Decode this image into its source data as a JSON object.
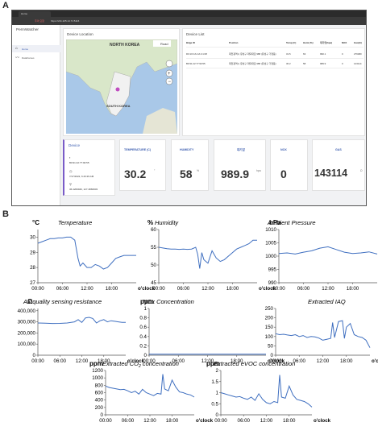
{
  "panel_labels": {
    "a": "A",
    "b": "B"
  },
  "app": {
    "browser_tab": "Home",
    "url_text": "https://211.225.14.71:5116",
    "warning_text": "주의 요함",
    "sidebar_title": "PermWatcher",
    "sidebar_items": [
      {
        "label": "Home",
        "icon": "home-icon"
      },
      {
        "label": "Dataframes",
        "icon": "chart-icon"
      }
    ],
    "device_location_title": "Device Location",
    "map": {
      "label_north_korea": "NORTH KOREA",
      "label_south_korea": "SOUTH KOREA",
      "roads_button": "Road"
    },
    "device_list": {
      "title": "Device List",
      "columns": [
        "Bdge ID",
        "Position",
        "Temp (C)",
        "Humi (%)",
        "대기압(hpa)",
        "NOX",
        "Gas(Ω)"
      ],
      "rows": [
        [
          "D0:10:CA:CA:C1:08",
          "대전광역시 유성구 대덕대로 988 (유성구 가정동)",
          "31.5",
          "63",
          "990.1",
          "0",
          "276480"
        ],
        [
          "B0:91:22:77:90:55",
          "대전광역시 유성구 대덕대로 988 (유성구 가정동)",
          "30.2",
          "58",
          "989.9",
          "0",
          "143114"
        ]
      ]
    },
    "device": {
      "title": "Device",
      "id": "B0:91:22:77:90:55",
      "datetime": "7/17/2022, 6:43:29 AM",
      "coords": "36.4209946, 127.4866903"
    },
    "metrics": [
      {
        "label": "TEMPERATURE (C)",
        "value": "30.2",
        "unit": "°"
      },
      {
        "label": "HUMIDITY",
        "value": "58",
        "unit": "%"
      },
      {
        "label": "대기압",
        "value": "989.9",
        "unit": "hpa"
      },
      {
        "label": "NOX",
        "value": "0",
        "unit": ""
      },
      {
        "label": "GAS",
        "value": "143114",
        "unit": "Ω"
      }
    ]
  },
  "chart_data": [
    {
      "type": "line",
      "unit": "°C",
      "title": "Temperature",
      "xlabel": "o'clock",
      "x_ticks": [
        "00:00",
        "06:00",
        "12:00",
        "18:00"
      ],
      "y_ticks": [
        "27",
        "28",
        "29",
        "30"
      ],
      "ylim": [
        27,
        30.5
      ],
      "x": [
        0,
        1,
        2,
        3,
        4,
        5,
        6,
        7,
        8,
        9,
        9.8,
        10.3,
        11,
        12,
        13,
        14,
        15,
        16,
        17,
        18,
        19,
        20,
        21,
        22,
        23,
        24
      ],
      "values": [
        29.6,
        29.7,
        29.8,
        29.9,
        29.9,
        29.95,
        29.95,
        30.0,
        30.0,
        29.8,
        28.6,
        28.1,
        28.3,
        28.0,
        28.0,
        28.2,
        28.1,
        27.9,
        28.0,
        28.3,
        28.6,
        28.7,
        28.8,
        28.8,
        28.8,
        28.8
      ]
    },
    {
      "type": "line",
      "unit": "%",
      "title": "Humidity",
      "xlabel": "o'clock",
      "x_ticks": [
        "00:00",
        "06:00",
        "12:00",
        "18:00"
      ],
      "y_ticks": [
        "45",
        "50",
        "55",
        "60"
      ],
      "ylim": [
        45,
        60
      ],
      "x": [
        0,
        1,
        2,
        3,
        4,
        5,
        6,
        7,
        8,
        9,
        9.5,
        10,
        10.5,
        11,
        12,
        13,
        14,
        15,
        16,
        17,
        18,
        19,
        20,
        21,
        22,
        23,
        24
      ],
      "values": [
        55.0,
        54.8,
        54.6,
        54.5,
        54.5,
        54.4,
        54.5,
        54.4,
        54.5,
        55.0,
        53.0,
        49.0,
        53.5,
        51.5,
        50.5,
        54.0,
        52.0,
        51.0,
        51.5,
        52.5,
        53.5,
        54.5,
        55.0,
        55.5,
        56.0,
        57.0,
        57.0
      ]
    },
    {
      "type": "line",
      "unit": "hPa",
      "title": "Ambient Pressure",
      "xlabel": "o'clock",
      "x_ticks": [
        "00:00",
        "06:00",
        "12:00",
        "18:00"
      ],
      "y_ticks": [
        "990",
        "995",
        "1000",
        "1005",
        "1010"
      ],
      "ylim": [
        990,
        1010
      ],
      "x": [
        0,
        2,
        4,
        6,
        8,
        10,
        12,
        14,
        16,
        18,
        20,
        22,
        24
      ],
      "values": [
        1001.0,
        1001.2,
        1000.8,
        1001.5,
        1002.0,
        1003.0,
        1003.5,
        1002.5,
        1001.5,
        1001.0,
        1001.2,
        1001.6,
        1000.8
      ]
    },
    {
      "type": "line",
      "unit": "Ω",
      "title": "Air quality sensing resistance",
      "xlabel": "o'clock",
      "x_ticks": [
        "00:00",
        "06:00",
        "12:00",
        "18:00"
      ],
      "y_ticks": [
        "0",
        "100,000",
        "200,000",
        "300,000",
        "400,000"
      ],
      "ylim": [
        0,
        420000
      ],
      "x": [
        0,
        2,
        4,
        6,
        8,
        10,
        11,
        12,
        13,
        14,
        15,
        16,
        17,
        18,
        19,
        20,
        21,
        22,
        23,
        24
      ],
      "values": [
        290000,
        288000,
        285000,
        286000,
        290000,
        300000,
        320000,
        295000,
        335000,
        340000,
        330000,
        290000,
        310000,
        320000,
        300000,
        310000,
        305000,
        300000,
        295000,
        295000
      ]
    },
    {
      "type": "line",
      "unit": "ppm",
      "title": "NOx Concentration",
      "xlabel": "o'clock",
      "x_ticks": [
        "00:00",
        "06:00",
        "12:00",
        "18:00"
      ],
      "y_ticks": [
        "0",
        "0.2",
        "0.4",
        "0.6",
        "0.8",
        "1"
      ],
      "ylim": [
        0,
        1
      ],
      "x": [
        0,
        24
      ],
      "values": [
        0.02,
        0.02
      ]
    },
    {
      "type": "line",
      "unit": "",
      "title": "Extracted IAQ",
      "xlabel": "o'clock",
      "x_ticks": [
        "00:00",
        "06:00",
        "12:00",
        "18:00"
      ],
      "y_ticks": [
        "0",
        "50",
        "100",
        "150",
        "200",
        "250"
      ],
      "ylim": [
        0,
        250
      ],
      "x": [
        0,
        1,
        2,
        3,
        4,
        5,
        6,
        7,
        8,
        9,
        10,
        11,
        12,
        13,
        14,
        14.5,
        15,
        16,
        17,
        17.5,
        18,
        19,
        20,
        21,
        22,
        23,
        24
      ],
      "values": [
        115,
        110,
        112,
        108,
        105,
        110,
        100,
        105,
        95,
        100,
        98,
        92,
        80,
        85,
        90,
        175,
        95,
        180,
        185,
        90,
        150,
        170,
        110,
        100,
        95,
        80,
        40
      ]
    },
    {
      "type": "line",
      "unit": "ppm",
      "title": "Extracted CO2 concentration",
      "xlabel": "o'clock",
      "x_ticks": [
        "00:00",
        "06:00",
        "12:00",
        "18:00"
      ],
      "y_ticks": [
        "0",
        "200",
        "400",
        "600",
        "800",
        "1000",
        "1200"
      ],
      "ylim": [
        0,
        1200
      ],
      "x": [
        0,
        1,
        2,
        3,
        4,
        5,
        6,
        7,
        8,
        9,
        10,
        11,
        12,
        13,
        14,
        15,
        15.5,
        16,
        17,
        18,
        19,
        20,
        21,
        22,
        23,
        24
      ],
      "values": [
        780,
        740,
        720,
        700,
        680,
        690,
        650,
        600,
        640,
        560,
        690,
        600,
        560,
        520,
        580,
        560,
        1100,
        700,
        650,
        940,
        750,
        620,
        600,
        560,
        540,
        480
      ]
    },
    {
      "type": "line",
      "unit": "ppm",
      "title": "Extracted eVOC concentration",
      "xlabel": "o'clock",
      "x_ticks": [
        "00:00",
        "06:00",
        "12:00",
        "18:00"
      ],
      "y_ticks": [
        "0",
        "0.5",
        "1",
        "1.5",
        "2"
      ],
      "ylim": [
        0,
        2
      ],
      "x": [
        0,
        1,
        2,
        3,
        4,
        5,
        6,
        7,
        8,
        9,
        10,
        11,
        12,
        13,
        14,
        15,
        15.5,
        16,
        17,
        18,
        19,
        20,
        21,
        22,
        23,
        24
      ],
      "values": [
        1.0,
        0.95,
        0.9,
        0.85,
        0.8,
        0.82,
        0.75,
        0.7,
        0.8,
        0.65,
        0.95,
        0.7,
        0.55,
        0.5,
        0.6,
        0.55,
        1.8,
        0.8,
        0.75,
        1.3,
        0.9,
        0.7,
        0.65,
        0.6,
        0.5,
        0.35
      ]
    }
  ]
}
